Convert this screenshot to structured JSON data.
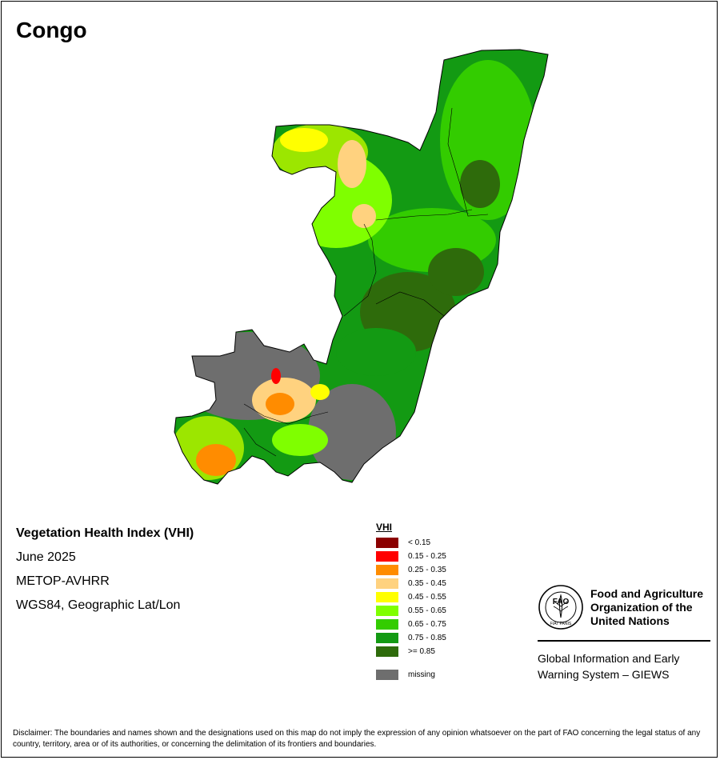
{
  "map": {
    "title": "Congo",
    "info_lines": [
      "Vegetation Health Index (VHI)",
      "June 2025",
      "METOP-AVHRR",
      "WGS84, Geographic Lat/Lon"
    ]
  },
  "legend": {
    "title": "VHI",
    "classes": [
      {
        "label": "< 0.15",
        "color": "#8b0000"
      },
      {
        "label": "0.15 - 0.25",
        "color": "#ff0000"
      },
      {
        "label": "0.25 - 0.35",
        "color": "#ff8c00"
      },
      {
        "label": "0.35 - 0.45",
        "color": "#ffd27f"
      },
      {
        "label": "0.45 - 0.55",
        "color": "#ffff00"
      },
      {
        "label": "0.55 - 0.65",
        "color": "#7fff00"
      },
      {
        "label": "0.65 - 0.75",
        "color": "#33cc00"
      },
      {
        "label": "0.75 - 0.85",
        "color": "#139a13"
      },
      {
        "label": ">= 0.85",
        "color": "#2e6b0b"
      }
    ],
    "missing": {
      "label": "missing",
      "color": "#6e6e6e"
    }
  },
  "fao": {
    "logo_letters": "FAO",
    "logo_motto": "FIAT PANIS",
    "name_lines": [
      "Food and Agriculture",
      "Organization of the",
      "United Nations"
    ],
    "giews_lines": [
      "Global Information and Early",
      "Warning System – GIEWS"
    ]
  },
  "disclaimer": "Disclaimer: The boundaries and names shown and the designations used on this map do not imply the expression of any opinion whatsoever on the part of FAO concerning the legal status of any country, territory, area or of its authorities, or concerning the delimitation of its frontiers and boundaries."
}
